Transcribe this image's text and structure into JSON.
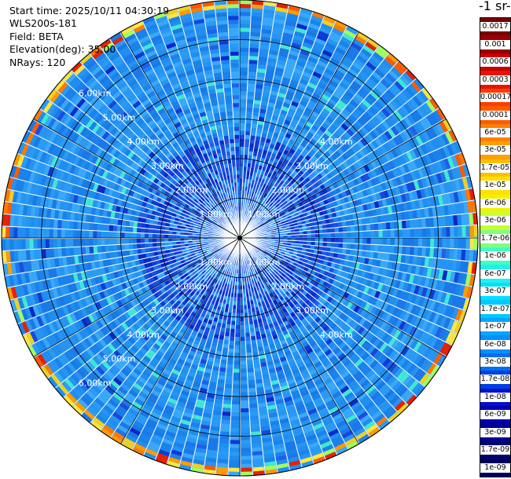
{
  "header": {
    "start_time": "Start time: 2025/10/11 04:30:19",
    "instrument": "WLS200s-181",
    "field": "Field: BETA",
    "elevation": "Elevation(deg): 35.00",
    "nrays": "NRays: 120"
  },
  "colorbar": {
    "title": "-1 sr-",
    "ticks": [
      "0.0017",
      "0.001",
      "0.0006",
      "0.0003",
      "0.00017",
      "0.0001",
      "6e-05",
      "3e-05",
      "1.7e-05",
      "1e-05",
      "6e-06",
      "3e-06",
      "1.7e-06",
      "1e-06",
      "6e-07",
      "3e-07",
      "1.7e-07",
      "1e-07",
      "6e-08",
      "3e-08",
      "1.7e-08",
      "1e-08",
      "6e-09",
      "3e-09",
      "1.7e-09",
      "1e-09"
    ],
    "colors": [
      "#7a0000",
      "#9a0000",
      "#c80000",
      "#e81400",
      "#ff3c00",
      "#ff5a00",
      "#ff8000",
      "#ffa000",
      "#ffc000",
      "#ffe000",
      "#f2f200",
      "#c8ff30",
      "#80ff80",
      "#40ffc0",
      "#20f0f0",
      "#00e0ff",
      "#00c8ff",
      "#00a8ff",
      "#0090ff",
      "#0070f0",
      "#0040e0",
      "#0010d0",
      "#0000b0",
      "#000090",
      "#000070",
      "#00005a"
    ]
  },
  "chart_data": {
    "type": "heatmap",
    "subtype": "polar-ppi",
    "title": "",
    "field": "BETA",
    "nrays": 120,
    "max_range_km": 6.0,
    "range_rings_km": [
      1.0,
      2.0,
      3.0,
      4.0,
      5.0,
      6.0
    ],
    "range_labels": [
      "1.00km",
      "2.00km",
      "3.00km",
      "4.00km",
      "5.00km",
      "6.00km"
    ],
    "radial_zones": [
      {
        "range_km": [
          0.0,
          1.2
        ],
        "dominant": "1e-08 to 1e-07",
        "note": "near-field, mixed light blue and dark blue"
      },
      {
        "range_km": [
          1.2,
          2.6
        ],
        "dominant": "1e-08 to 3e-08",
        "note": "dark blue ring"
      },
      {
        "range_km": [
          2.6,
          5.8
        ],
        "dominant": "6e-08 to 1.7e-07",
        "note": "light blue, scattered cyan"
      },
      {
        "range_km": [
          5.8,
          6.0
        ],
        "dominant": "1e-06 to 6e-05",
        "note": "outer edge band, yellow-orange-red"
      }
    ]
  }
}
